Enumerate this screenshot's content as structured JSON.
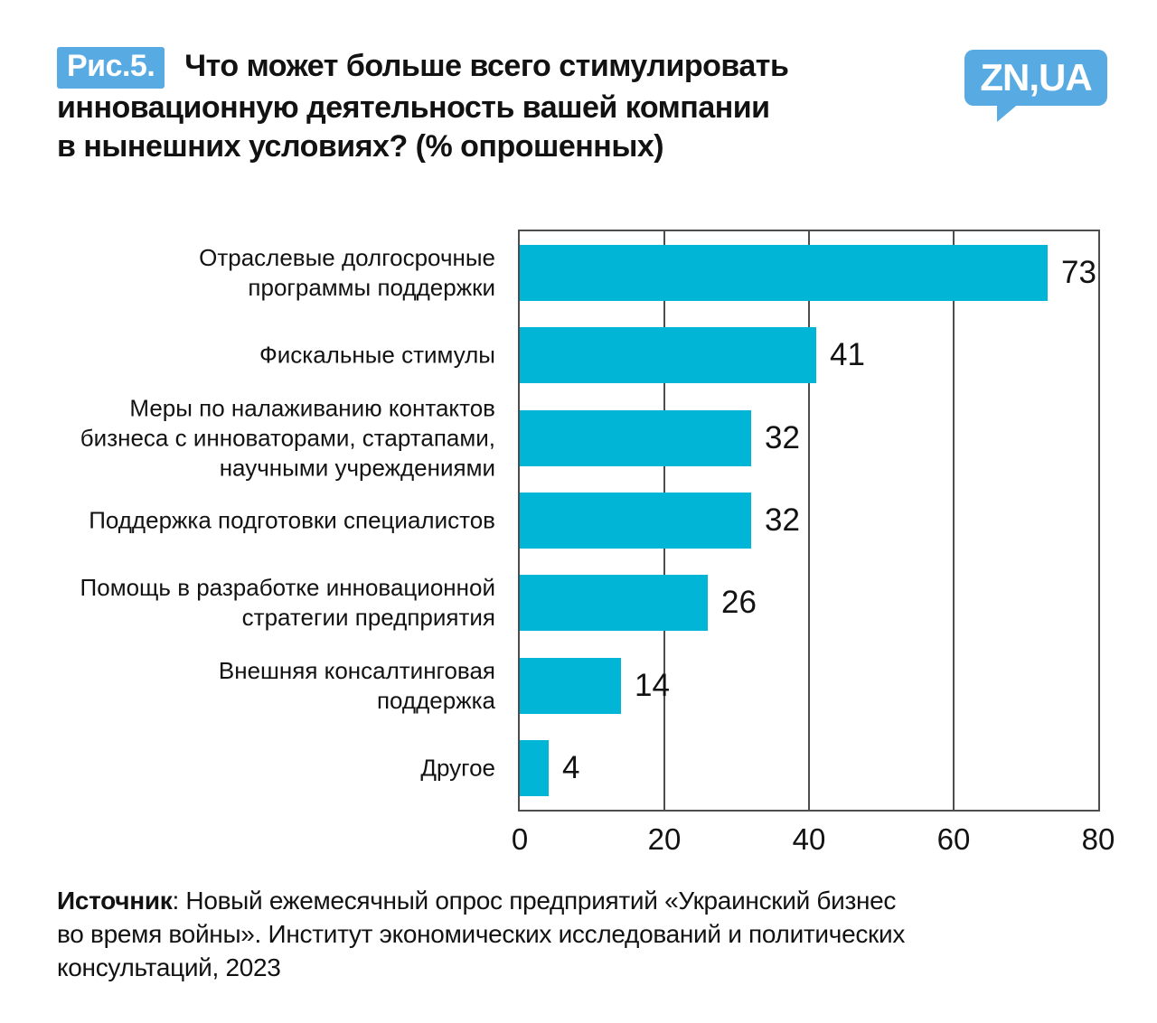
{
  "figure": {
    "badge": "Рис.5.",
    "title_lines": [
      "Что может больше всего стимулировать",
      "инновационную деятельность вашей компании",
      "в нынешних условиях? (% опрошенных)"
    ]
  },
  "logo": {
    "text": "ZN,UA"
  },
  "colors": {
    "bar": "#00b5d6",
    "accent_blue": "#58abe2",
    "grid": "#4d4d4d",
    "text": "#121212"
  },
  "chart_data": {
    "type": "bar",
    "orientation": "horizontal",
    "title": "Что может больше всего стимулировать инновационную деятельность вашей компании в нынешних условиях? (% опрошенных)",
    "categories": [
      "Отраслевые долгосрочные\nпрограммы поддержки",
      "Фискальные стимулы",
      "Меры по налаживанию контактов\nбизнеса с инноваторами, стартапами,\nнаучными учреждениями",
      "Поддержка подготовки специалистов",
      "Помощь в разработке инновационной\nстратегии предприятия",
      "Внешняя консалтинговая\nподдержка",
      "Другое"
    ],
    "values": [
      73,
      41,
      32,
      32,
      26,
      14,
      4
    ],
    "xlim": [
      0,
      80
    ],
    "xticks": [
      0,
      20,
      40,
      60,
      80
    ],
    "grid": "vertical-interior-lines",
    "legend": "none",
    "value_labels": true,
    "bar_color": "#00b5d6"
  },
  "source": {
    "bold_label": "Источник",
    "line1_rest": ": Новый ежемесячный опрос предприятий «Украинский бизнес",
    "line2": "во время войны». Институт экономических исследований и политических",
    "line3": "консультаций, 2023"
  }
}
